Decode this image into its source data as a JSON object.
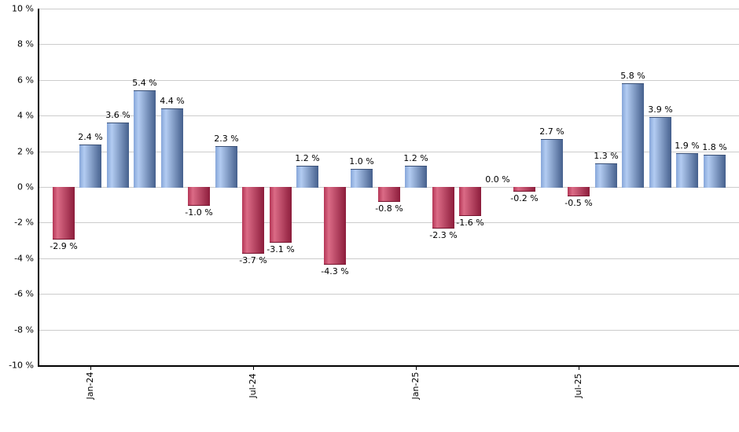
{
  "chart_data": {
    "type": "bar",
    "title": "",
    "xlabel": "",
    "ylabel": "",
    "unit": "%",
    "grid": true,
    "ylim": [
      -10,
      10
    ],
    "y_tick_step": 2,
    "values": [
      -2.9,
      2.4,
      3.6,
      5.4,
      4.4,
      -1.0,
      2.3,
      -3.7,
      -3.1,
      1.2,
      -4.3,
      1.0,
      -0.8,
      1.2,
      -2.3,
      -1.6,
      0.0,
      -0.2,
      2.7,
      -0.5,
      1.3,
      5.8,
      3.9,
      1.9,
      1.8
    ],
    "bar_labels": [
      "-2.9 %",
      "2.4 %",
      "3.6 %",
      "5.4 %",
      "4.4 %",
      "-1.0 %",
      "2.3 %",
      "-3.7 %",
      "-3.1 %",
      "1.2 %",
      "-4.3 %",
      "1.0 %",
      "-0.8 %",
      "1.2 %",
      "-2.3 %",
      "-1.6 %",
      "0.0 %",
      "-0.2 %",
      "2.7 %",
      "-0.5 %",
      "1.3 %",
      "5.8 %",
      "3.9 %",
      "1.9 %",
      "1.8 %"
    ],
    "y_tick_labels": [
      "10 %",
      "8 %",
      "6 %",
      "4 %",
      "2 %",
      "0 %",
      "-2 %",
      "-4 %",
      "-6 %",
      "-8 %",
      "-10 %"
    ],
    "x_ticks": [
      {
        "label": "Jan-24",
        "bar_index": 1
      },
      {
        "label": "Jul-24",
        "bar_index": 7
      },
      {
        "label": "Jan-25",
        "bar_index": 13
      },
      {
        "label": "Jul-25",
        "bar_index": 19
      }
    ],
    "colors": {
      "positive_light": "#b3ccf2",
      "positive_mid": "#86a6d9",
      "positive_dark": "#45608d",
      "negative_light": "#db6b86",
      "negative_mid": "#b43656",
      "negative_dark": "#8c1c3b",
      "gridline": "#cccccc",
      "axis": "#000000",
      "label_text": "#000000",
      "background": "#ffffff"
    }
  }
}
